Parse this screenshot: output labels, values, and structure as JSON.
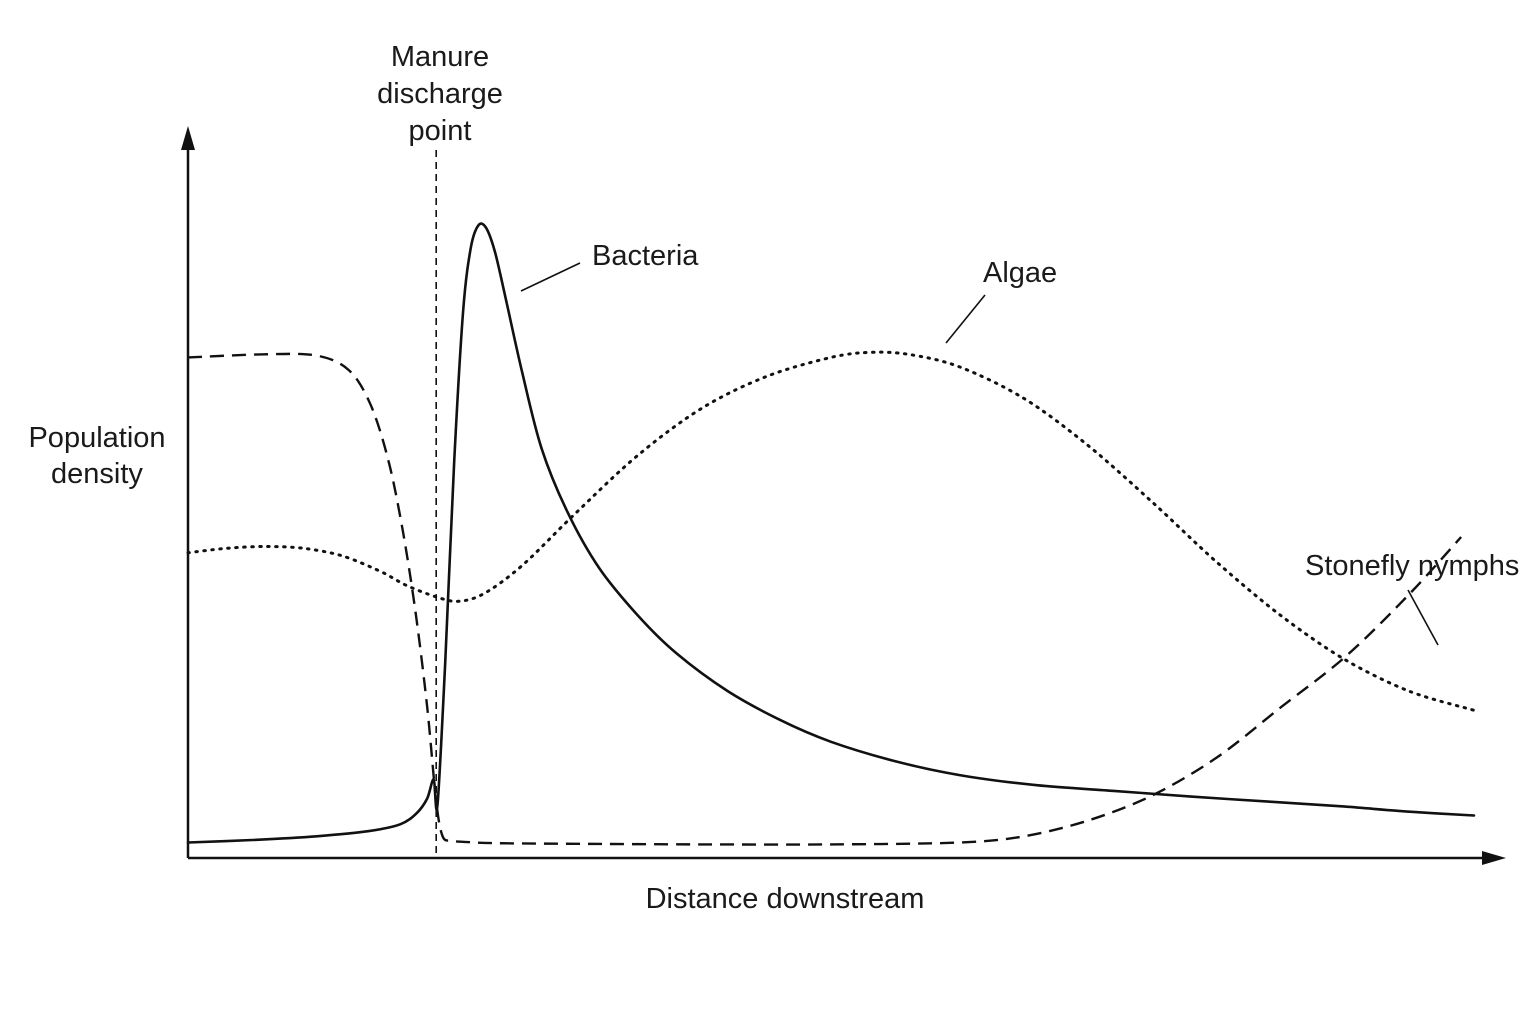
{
  "chart_data": {
    "type": "line",
    "title": "",
    "xlabel": "Distance downstream",
    "ylabel": [
      "Population",
      "density"
    ],
    "xlim": [
      0,
      100
    ],
    "ylim": [
      0,
      100
    ],
    "axis_ticks": false,
    "grid": false,
    "legend": "none (series labeled directly with leader lines)",
    "marker": {
      "label": [
        "Manure",
        "discharge",
        "point"
      ],
      "x": 19.3,
      "style": "dashed vertical line"
    },
    "series": [
      {
        "name": "Bacteria",
        "style": "solid",
        "x": [
          0,
          5,
          10,
          14,
          16.5,
          17.8,
          18.6,
          19.1,
          19.4,
          20,
          20.7,
          21.4,
          22,
          22.6,
          23.2,
          23.9,
          24.8,
          26,
          27.5,
          29.5,
          32,
          35,
          38,
          42,
          46,
          50,
          55,
          60,
          66,
          72,
          78,
          84,
          90,
          95,
          100
        ],
        "values": [
          1.5,
          1.9,
          2.5,
          3.3,
          4.4,
          6.2,
          8.5,
          11.5,
          7.5,
          30,
          62,
          86,
          96,
          99.5,
          99,
          95,
          87,
          76,
          64,
          54,
          45,
          37.5,
          31.5,
          25.5,
          21,
          17.5,
          14.4,
          12.2,
          10.6,
          9.7,
          8.8,
          8,
          7.2,
          6.4,
          5.8
        ]
      },
      {
        "name": "Algae",
        "style": "dotted",
        "x": [
          0,
          3,
          6,
          9,
          12,
          15,
          17,
          19.3,
          21,
          23,
          26,
          30,
          35,
          40,
          45,
          50,
          53,
          56,
          60,
          65,
          70,
          75,
          80,
          85,
          90,
          95,
          100
        ],
        "values": [
          47.5,
          48.2,
          48.5,
          48.2,
          47,
          44.5,
          42.3,
          40.5,
          39.8,
          41,
          45.5,
          53.5,
          63,
          70.5,
          75.5,
          78.5,
          79.3,
          79,
          77,
          72,
          64.5,
          55.5,
          46,
          37.5,
          30.5,
          25.5,
          22.5
        ]
      },
      {
        "name": "Stonefly nymphs",
        "style": "dashed",
        "x": [
          0,
          6,
          10,
          12.5,
          14.2,
          15.6,
          16.7,
          17.7,
          18.6,
          19.3,
          19.8,
          20.5,
          21.5,
          24,
          30,
          40,
          50,
          60,
          65,
          70,
          75,
          80,
          85,
          90,
          95,
          99
        ],
        "values": [
          78.5,
          79,
          78.8,
          76.5,
          71,
          62,
          51,
          38,
          23,
          8,
          2.5,
          1.8,
          1.6,
          1.4,
          1.3,
          1.2,
          1.2,
          1.5,
          2.5,
          5,
          9,
          15,
          23,
          31,
          41,
          50
        ]
      }
    ]
  }
}
